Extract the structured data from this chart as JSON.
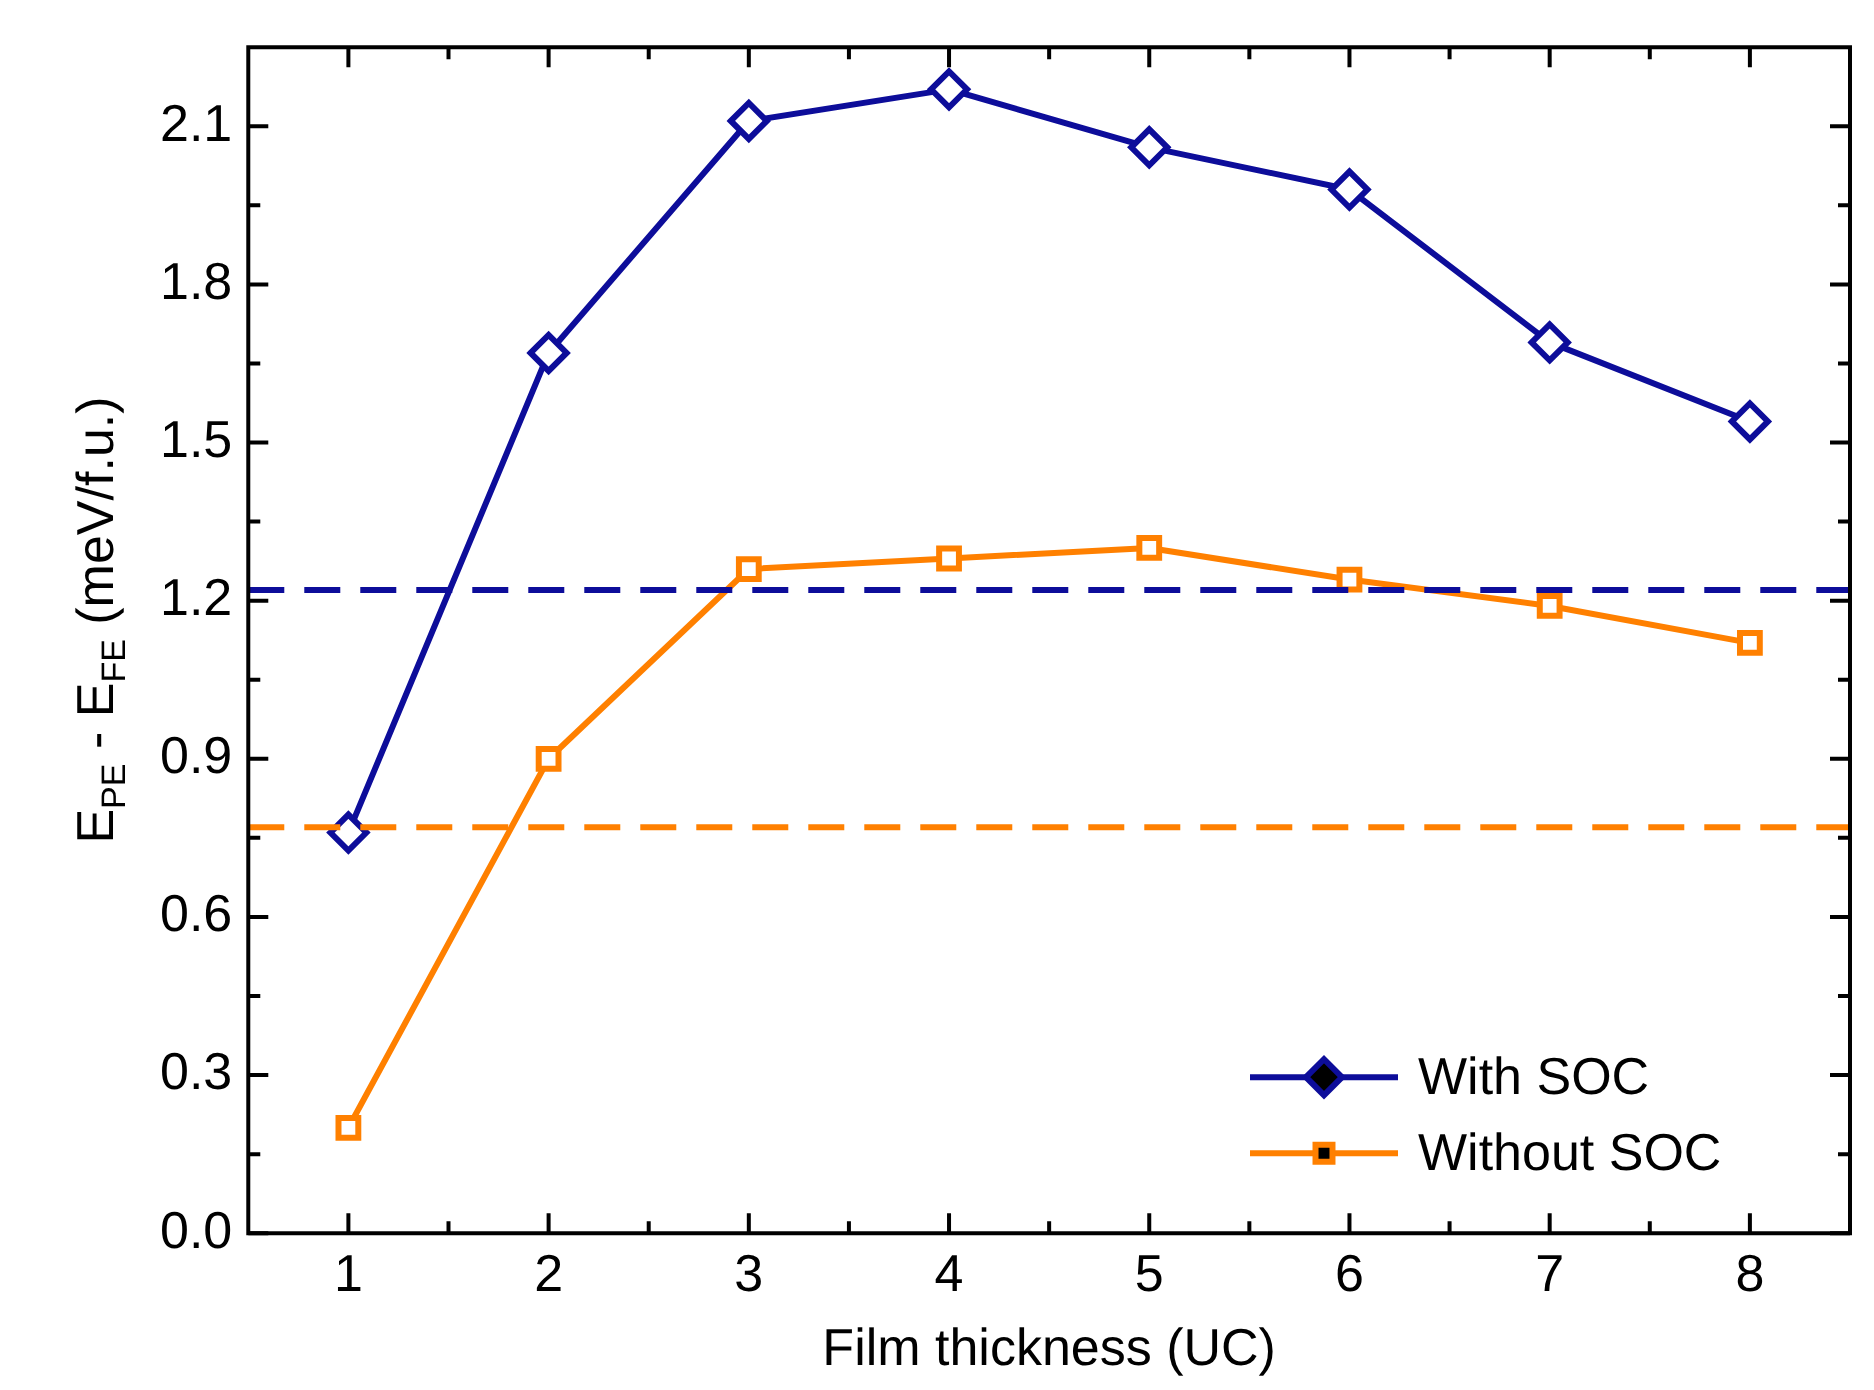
{
  "chart_data": {
    "type": "line",
    "xlabel": "Film thickness (UC)",
    "ylabel": "E$_{PE}$ - E$_{FE}$ (meV/f.u.)",
    "x": [
      1,
      2,
      3,
      4,
      5,
      6,
      7,
      8
    ],
    "xlim": [
      0.5,
      8.5
    ],
    "xticks": [
      1,
      2,
      3,
      4,
      5,
      6,
      7,
      8
    ],
    "ylim": [
      0,
      2.25
    ],
    "yticks": [
      "0.0",
      0.3,
      0.6,
      0.9,
      1.2,
      1.5,
      1.8,
      2.1
    ],
    "series": [
      {
        "name": "With SOC",
        "color": "#0d0d9a",
        "marker": "diamond",
        "values": [
          0.76,
          1.67,
          2.11,
          2.17,
          2.06,
          1.98,
          1.69,
          1.54
        ]
      },
      {
        "name": "Without SOC",
        "color": "#ff8000",
        "marker": "square",
        "values": [
          0.2,
          0.9,
          1.26,
          1.28,
          1.3,
          1.24,
          1.19,
          1.12
        ]
      }
    ],
    "ref_lines": [
      {
        "axis": "y",
        "value": 1.22,
        "color": "#0d0d9a",
        "line_style": "dashed"
      },
      {
        "axis": "y",
        "value": 0.77,
        "color": "#ff8000",
        "line_style": "dashed"
      }
    ],
    "legend": "bottom right",
    "grid": false,
    "line_style": "solid"
  }
}
